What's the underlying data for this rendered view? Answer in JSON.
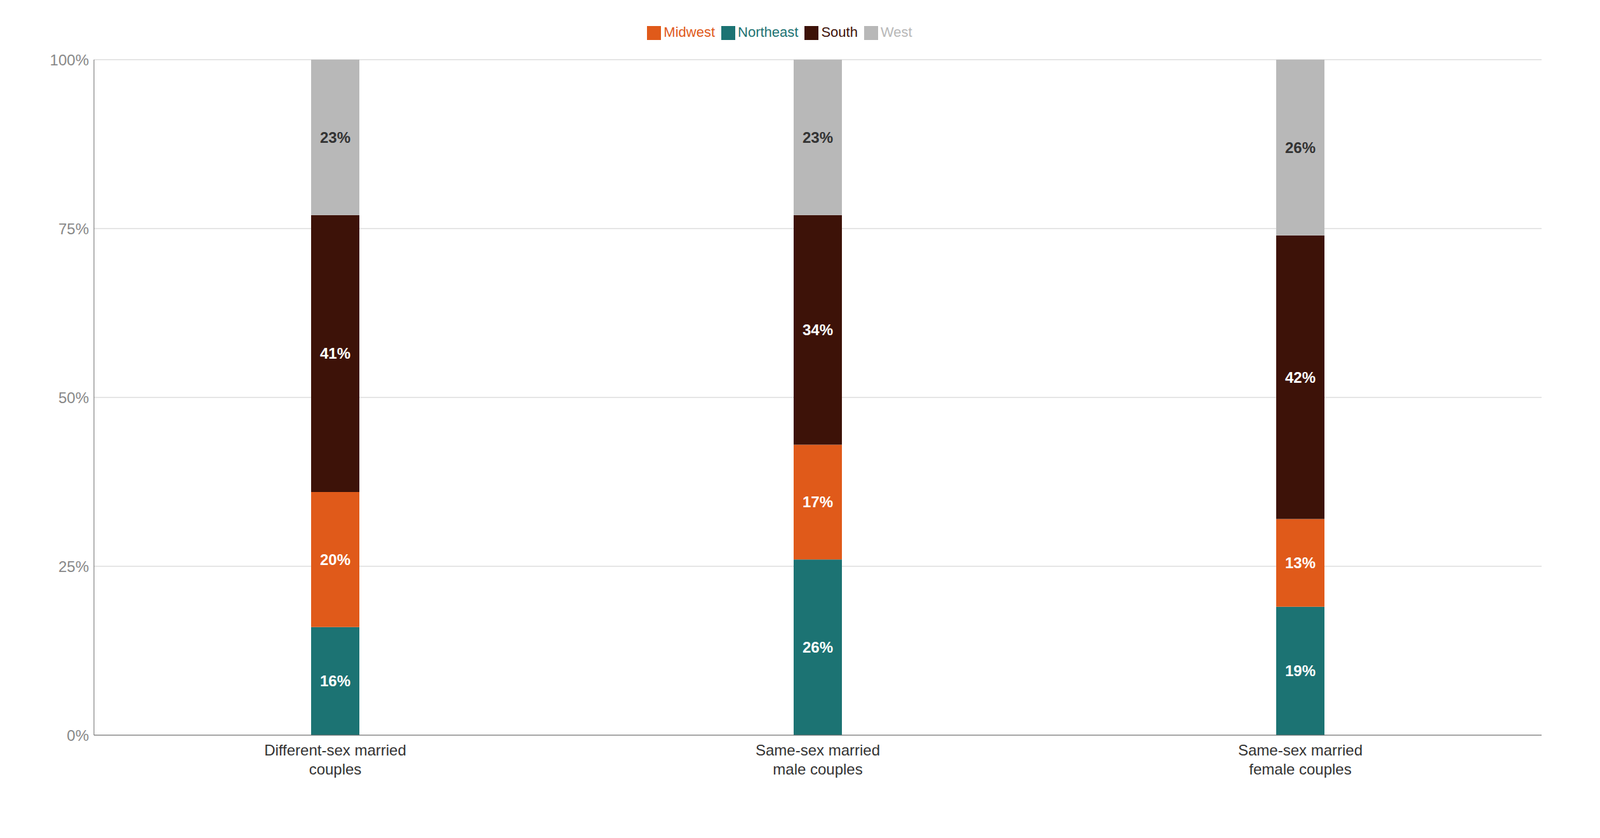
{
  "chart_data": {
    "type": "bar",
    "stacked": true,
    "categories": [
      "Different-sex married\ncouples",
      "Same-sex married\nmale couples",
      "Same-sex married\nfemale couples"
    ],
    "series": [
      {
        "name": "Northeast",
        "color": "#1c7373",
        "values": [
          16,
          26,
          19
        ],
        "value_labels": [
          "16%",
          "26%",
          "19%"
        ]
      },
      {
        "name": "Midwest",
        "color": "#e05a1a",
        "values": [
          20,
          17,
          13
        ],
        "value_labels": [
          "20%",
          "17%",
          "13%"
        ]
      },
      {
        "name": "South",
        "color": "#3d1208",
        "values": [
          41,
          34,
          42
        ],
        "value_labels": [
          "41%",
          "34%",
          "42%"
        ]
      },
      {
        "name": "West",
        "color": "#b8b8b8",
        "values": [
          23,
          23,
          26
        ],
        "value_labels": [
          "23%",
          "23%",
          "26%"
        ]
      }
    ],
    "ylim": [
      0,
      100
    ],
    "yticks": [
      {
        "value": 0,
        "label": "0%"
      },
      {
        "value": 25,
        "label": "25%"
      },
      {
        "value": 50,
        "label": "50%"
      },
      {
        "value": 75,
        "label": "75%"
      },
      {
        "value": 100,
        "label": "100%"
      }
    ],
    "grid": true,
    "legend": "top",
    "data_labels": true
  }
}
